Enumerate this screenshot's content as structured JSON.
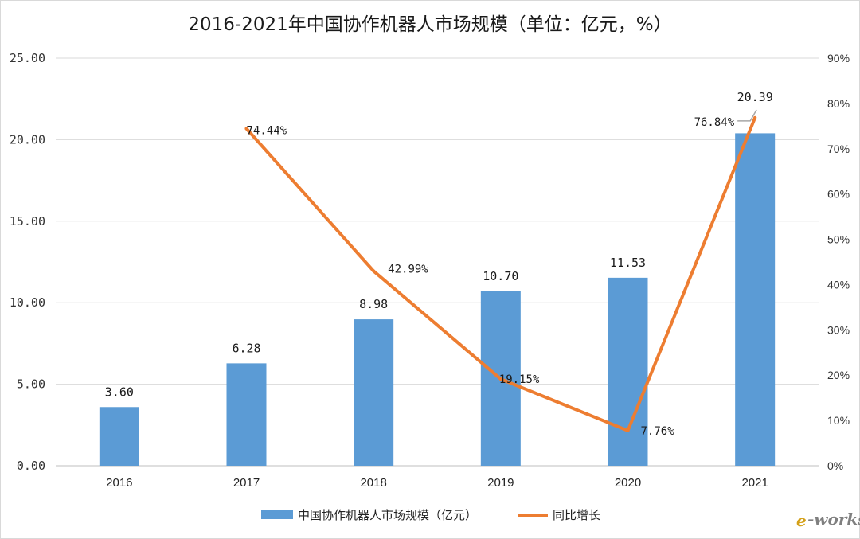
{
  "chart_data": {
    "type": "bar",
    "title": "2016-2021年中国协作机器人市场规模（单位：亿元，%）",
    "categories": [
      "2016",
      "2017",
      "2018",
      "2019",
      "2020",
      "2021"
    ],
    "series": [
      {
        "name": "中国协作机器人市场规模（亿元）",
        "type": "bar",
        "axis": "left",
        "color": "#5b9bd5",
        "values": [
          3.6,
          6.28,
          8.98,
          10.7,
          11.53,
          20.39
        ],
        "labels": [
          "3.60",
          "6.28",
          "8.98",
          "10.70",
          "11.53",
          "20.39"
        ]
      },
      {
        "name": "同比增长",
        "type": "line",
        "axis": "right",
        "color": "#ed7d31",
        "values": [
          null,
          74.44,
          42.99,
          19.15,
          7.76,
          76.84
        ],
        "labels": [
          "",
          "74.44%",
          "42.99%",
          "19.15%",
          "7.76%",
          "76.84%"
        ]
      }
    ],
    "y_left": {
      "lim": [
        0,
        25
      ],
      "ticks": [
        0,
        5,
        10,
        15,
        20,
        25
      ],
      "tick_labels": [
        "0.00",
        "5.00",
        "10.00",
        "15.00",
        "20.00",
        "25.00"
      ]
    },
    "y_right": {
      "lim": [
        0,
        90
      ],
      "ticks": [
        0,
        10,
        20,
        30,
        40,
        50,
        60,
        70,
        80,
        90
      ],
      "tick_labels": [
        "0%",
        "10%",
        "20%",
        "30%",
        "40%",
        "50%",
        "60%",
        "70%",
        "80%",
        "90%"
      ]
    },
    "grid": true,
    "legend_position": "bottom"
  },
  "watermark": {
    "text_e": "e",
    "text_rest": "-works",
    "color_e": "#d4a017",
    "color_rest": "#7f7f7f"
  }
}
